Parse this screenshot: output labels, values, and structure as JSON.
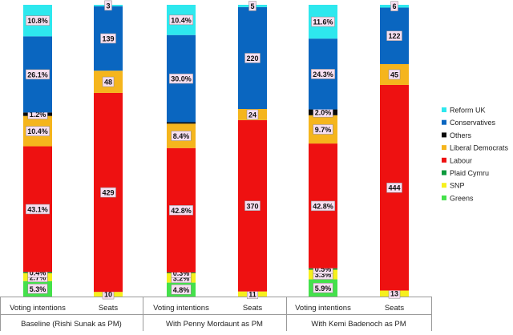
{
  "chart_data": {
    "type": "bar",
    "stacked": true,
    "stack_mode": "percent",
    "legend_position": "right",
    "groups": [
      {
        "label": "Baseline (Rishi Sunak as PM)",
        "bars": [
          {
            "label": "Voting intentions",
            "segments": [
              {
                "party": "Greens",
                "value": 5.3,
                "label": "5.3%"
              },
              {
                "party": "SNP",
                "value": 2.7,
                "label": "2.7%"
              },
              {
                "party": "Plaid Cymru",
                "value": 0.4,
                "label": "0.4%"
              },
              {
                "party": "Labour",
                "value": 43.1,
                "label": "43.1%"
              },
              {
                "party": "Liberal Democrats",
                "value": 10.4,
                "label": "10.4%"
              },
              {
                "party": "Others",
                "value": 1.2,
                "label": "1.2%"
              },
              {
                "party": "Conservatives",
                "value": 26.1,
                "label": "26.1%"
              },
              {
                "party": "Reform UK",
                "value": 10.8,
                "label": "10.8%"
              }
            ]
          },
          {
            "label": "Seats",
            "segments": [
              {
                "party": "SNP",
                "value": 10,
                "label": "10"
              },
              {
                "party": "Labour",
                "value": 429,
                "label": "429"
              },
              {
                "party": "Liberal Democrats",
                "value": 48,
                "label": "48"
              },
              {
                "party": "Conservatives",
                "value": 139,
                "label": "139"
              },
              {
                "party": "Reform UK",
                "value": 3,
                "label": "3"
              }
            ]
          }
        ]
      },
      {
        "label": "With Penny Mordaunt as PM",
        "bars": [
          {
            "label": "Voting intentions",
            "segments": [
              {
                "party": "Greens",
                "value": 4.8,
                "label": "4.8%"
              },
              {
                "party": "SNP",
                "value": 3.2,
                "label": "3.2%"
              },
              {
                "party": "Plaid Cymru",
                "value": 0.3,
                "label": "0.3%"
              },
              {
                "party": "Labour",
                "value": 42.8,
                "label": "42.8%"
              },
              {
                "party": "Liberal Democrats",
                "value": 8.4,
                "label": "8.4%"
              },
              {
                "party": "Others",
                "value": 0.5,
                "label": ""
              },
              {
                "party": "Conservatives",
                "value": 30.0,
                "label": "30.0%"
              },
              {
                "party": "Reform UK",
                "value": 10.4,
                "label": "10.4%"
              }
            ]
          },
          {
            "label": "Seats",
            "segments": [
              {
                "party": "SNP",
                "value": 11,
                "label": "11"
              },
              {
                "party": "Labour",
                "value": 370,
                "label": "370"
              },
              {
                "party": "Liberal Democrats",
                "value": 24,
                "label": "24"
              },
              {
                "party": "Conservatives",
                "value": 220,
                "label": "220"
              },
              {
                "party": "Reform UK",
                "value": 5,
                "label": "5"
              }
            ]
          }
        ]
      },
      {
        "label": "With Kemi Badenoch as PM",
        "bars": [
          {
            "label": "Voting intentions",
            "segments": [
              {
                "party": "Greens",
                "value": 5.9,
                "label": "5.9%"
              },
              {
                "party": "SNP",
                "value": 3.3,
                "label": "3.3%"
              },
              {
                "party": "Plaid Cymru",
                "value": 0.5,
                "label": "0.5%"
              },
              {
                "party": "Labour",
                "value": 42.8,
                "label": "42.8%"
              },
              {
                "party": "Liberal Democrats",
                "value": 9.7,
                "label": "9.7%"
              },
              {
                "party": "Others",
                "value": 2.0,
                "label": "2.0%"
              },
              {
                "party": "Conservatives",
                "value": 24.3,
                "label": "24.3%"
              },
              {
                "party": "Reform UK",
                "value": 11.6,
                "label": "11.6%"
              }
            ]
          },
          {
            "label": "Seats",
            "segments": [
              {
                "party": "SNP",
                "value": 13,
                "label": "13"
              },
              {
                "party": "Labour",
                "value": 444,
                "label": "444"
              },
              {
                "party": "Liberal Democrats",
                "value": 45,
                "label": "45"
              },
              {
                "party": "Conservatives",
                "value": 122,
                "label": "122"
              },
              {
                "party": "Reform UK",
                "value": 6,
                "label": "6"
              }
            ]
          }
        ]
      }
    ],
    "legend": [
      {
        "party": "Reform UK",
        "label": "Reform UK"
      },
      {
        "party": "Conservatives",
        "label": "Conservatives"
      },
      {
        "party": "Others",
        "label": "Others"
      },
      {
        "party": "Liberal Democrats",
        "label": "Liberal Democrats"
      },
      {
        "party": "Labour",
        "label": "Labour"
      },
      {
        "party": "Plaid Cymru",
        "label": "Plaid Cymru"
      },
      {
        "party": "SNP",
        "label": "SNP"
      },
      {
        "party": "Greens",
        "label": "Greens"
      }
    ],
    "colors": {
      "Reform UK": "#2ee8ee",
      "Conservatives": "#0a66c0",
      "Others": "#0a0a0a",
      "Liberal Democrats": "#f5b51d",
      "Labour": "#ee1111",
      "Plaid Cymru": "#0c9a3c",
      "SNP": "#f6f01d",
      "Greens": "#44e14b"
    }
  }
}
